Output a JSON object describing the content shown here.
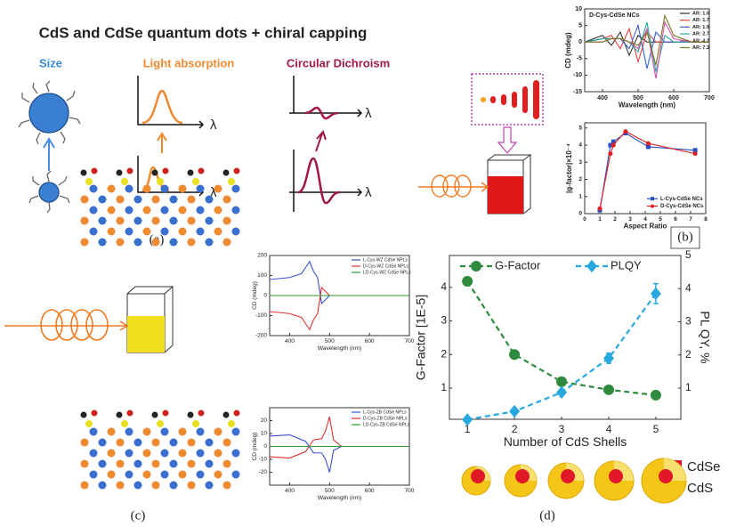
{
  "panel_a": {
    "title": "CdS and CdSe quantum dots + chiral capping",
    "size_label": "Size",
    "absorption_label": "Light absorption",
    "cd_label": "Circular Dichroism",
    "axis_symbol": "λ",
    "caption": "(a)"
  },
  "panel_b": {
    "caption": "(b)"
  },
  "panel_c": {
    "caption": "(c)"
  },
  "panel_d": {
    "caption": "(d)",
    "core_label": "CdSe",
    "shell_label": "CdS"
  },
  "chart_data": [
    {
      "type": "line",
      "annotation": "D-Cys-CdSe NCs",
      "x_label": "Wavelength (nm)",
      "y_label": "CD (mdeg)",
      "x": [
        350,
        400,
        425,
        450,
        475,
        500,
        525,
        550,
        575,
        600,
        650,
        700
      ],
      "xlim": [
        350,
        700
      ],
      "xticks": [
        400,
        500,
        600,
        700
      ],
      "ylim": [
        -15,
        10
      ],
      "yticks": [
        -15,
        -10,
        -5,
        0,
        5,
        10
      ],
      "legend": "upper right",
      "series": [
        {
          "name": "AR: 1.0",
          "color": "#333333",
          "values": [
            0,
            2,
            -1,
            3,
            -4,
            2,
            0,
            0,
            0,
            0,
            0,
            0
          ]
        },
        {
          "name": "AR: 1.7",
          "color": "#e0403a",
          "values": [
            0,
            1,
            2,
            -2,
            4,
            -6,
            3,
            0,
            0,
            0,
            0,
            0
          ]
        },
        {
          "name": "AR: 1.9",
          "color": "#3a5fcd",
          "values": [
            0,
            1,
            1,
            1,
            -2,
            5,
            -8,
            3,
            0,
            0,
            0,
            0
          ]
        },
        {
          "name": "AR: 2.7",
          "color": "#2aa7a0",
          "values": [
            0,
            1,
            1,
            1,
            0,
            -3,
            6,
            -9,
            2,
            0,
            0,
            0
          ]
        },
        {
          "name": "AR: 4.2",
          "color": "#d04fb0",
          "values": [
            0,
            0,
            1,
            1,
            0,
            -2,
            4,
            -11,
            6,
            1,
            0,
            0
          ]
        },
        {
          "name": "AR: 7.3",
          "color": "#7a7a20",
          "values": [
            0,
            0,
            1,
            1,
            0,
            -1,
            3,
            -7,
            8,
            2,
            0,
            0
          ]
        }
      ]
    },
    {
      "type": "line",
      "x_label": "Aspect Ratio",
      "y_label": "|g-factor|×10⁻⁴",
      "x": [
        1,
        1.7,
        1.9,
        2.7,
        4.2,
        7.3
      ],
      "xlim": [
        0,
        8
      ],
      "xticks": [
        0,
        1,
        2,
        3,
        4,
        5,
        6,
        7,
        8
      ],
      "ylim": [
        0,
        5.3
      ],
      "yticks": [
        0,
        1,
        2,
        3,
        4,
        5
      ],
      "legend": "lower right",
      "series": [
        {
          "name": "L-Cys-CdSe NCs",
          "color": "#2b4fc0",
          "marker": "square",
          "values": [
            0.2,
            4.0,
            4.2,
            4.7,
            3.9,
            3.7
          ]
        },
        {
          "name": "D-Cys-CdSe NCs",
          "color": "#e02020",
          "marker": "circle",
          "values": [
            0.3,
            3.5,
            4.0,
            4.8,
            4.1,
            3.5
          ]
        }
      ]
    },
    {
      "type": "line",
      "x_label": "Wavelength (nm)",
      "y_label": "CD (mdeg)",
      "x": [
        350,
        400,
        430,
        450,
        460,
        470,
        480,
        500,
        550,
        600,
        700
      ],
      "xlim": [
        350,
        700
      ],
      "xticks": [
        400,
        500,
        600,
        700
      ],
      "ylim": [
        -200,
        200
      ],
      "yticks": [
        -200,
        -100,
        0,
        100,
        200
      ],
      "legend": "upper right",
      "series": [
        {
          "name": "L-Cys-WZ CdSe NPLs",
          "color": "#3a4fd0",
          "values": [
            80,
            90,
            110,
            170,
            120,
            90,
            -40,
            0,
            0,
            0,
            0
          ]
        },
        {
          "name": "D-Cys-WZ CdSe NPLs",
          "color": "#e03030",
          "values": [
            -80,
            -90,
            -110,
            -170,
            -120,
            -90,
            40,
            0,
            0,
            0,
            0
          ]
        },
        {
          "name": "LD-Cys-WZ CdSe NPLs",
          "color": "#2a9a2a",
          "values": [
            0,
            0,
            0,
            0,
            0,
            0,
            0,
            0,
            0,
            0,
            0
          ]
        }
      ]
    },
    {
      "type": "line",
      "x_label": "Wavelength (nm)",
      "y_label": "CD (mdeg)",
      "x": [
        350,
        400,
        440,
        460,
        480,
        490,
        500,
        510,
        530,
        600,
        700
      ],
      "xlim": [
        350,
        700
      ],
      "xticks": [
        400,
        500,
        600,
        700
      ],
      "ylim": [
        -30,
        30
      ],
      "yticks": [
        -20,
        -10,
        0,
        10,
        20
      ],
      "legend": "upper right",
      "series": [
        {
          "name": "L-Cys-ZB CdSe NPLs",
          "color": "#3a4fd0",
          "values": [
            8,
            9,
            4,
            -5,
            -5,
            -10,
            -20,
            -3,
            0,
            0,
            0
          ]
        },
        {
          "name": "D-Cys-ZB CdSe NPLs",
          "color": "#e03030",
          "values": [
            -8,
            -9,
            -4,
            5,
            6,
            12,
            23,
            5,
            0,
            0,
            0
          ]
        },
        {
          "name": "LD-Cys-ZB CdSe NPLs",
          "color": "#2a9a2a",
          "values": [
            0,
            0,
            0,
            0,
            0,
            0,
            0,
            0,
            0,
            0,
            0
          ]
        }
      ]
    },
    {
      "type": "line",
      "x_label": "Number of CdS Shells",
      "y_label": "G-Factor [1E-5]",
      "y2_label": "PL QY, %",
      "x": [
        1,
        2,
        3,
        4,
        5
      ],
      "xlim": [
        0.62,
        5.53
      ],
      "xticks": [
        1,
        2,
        3,
        4,
        5
      ],
      "ylim": [
        0.07,
        4.95
      ],
      "yticks": [
        1,
        2,
        3,
        4
      ],
      "y2lim": [
        0.06,
        5
      ],
      "y2ticks": [
        1,
        2,
        3,
        4,
        5
      ],
      "legend": "top",
      "line_style": "dashed",
      "series": [
        {
          "name": "G-Factor",
          "color": "#2e8b3e",
          "marker": "circle",
          "values": [
            4.18,
            2.0,
            1.19,
            0.95,
            0.79
          ]
        },
        {
          "name": "PLQY",
          "color": "#29a8e0",
          "marker": "diamond",
          "axis": "y2",
          "values": [
            0.05,
            0.3,
            0.87,
            1.9,
            3.85
          ],
          "errors": [
            0.05,
            0.05,
            0.08,
            0.15,
            0.3
          ]
        }
      ]
    }
  ]
}
